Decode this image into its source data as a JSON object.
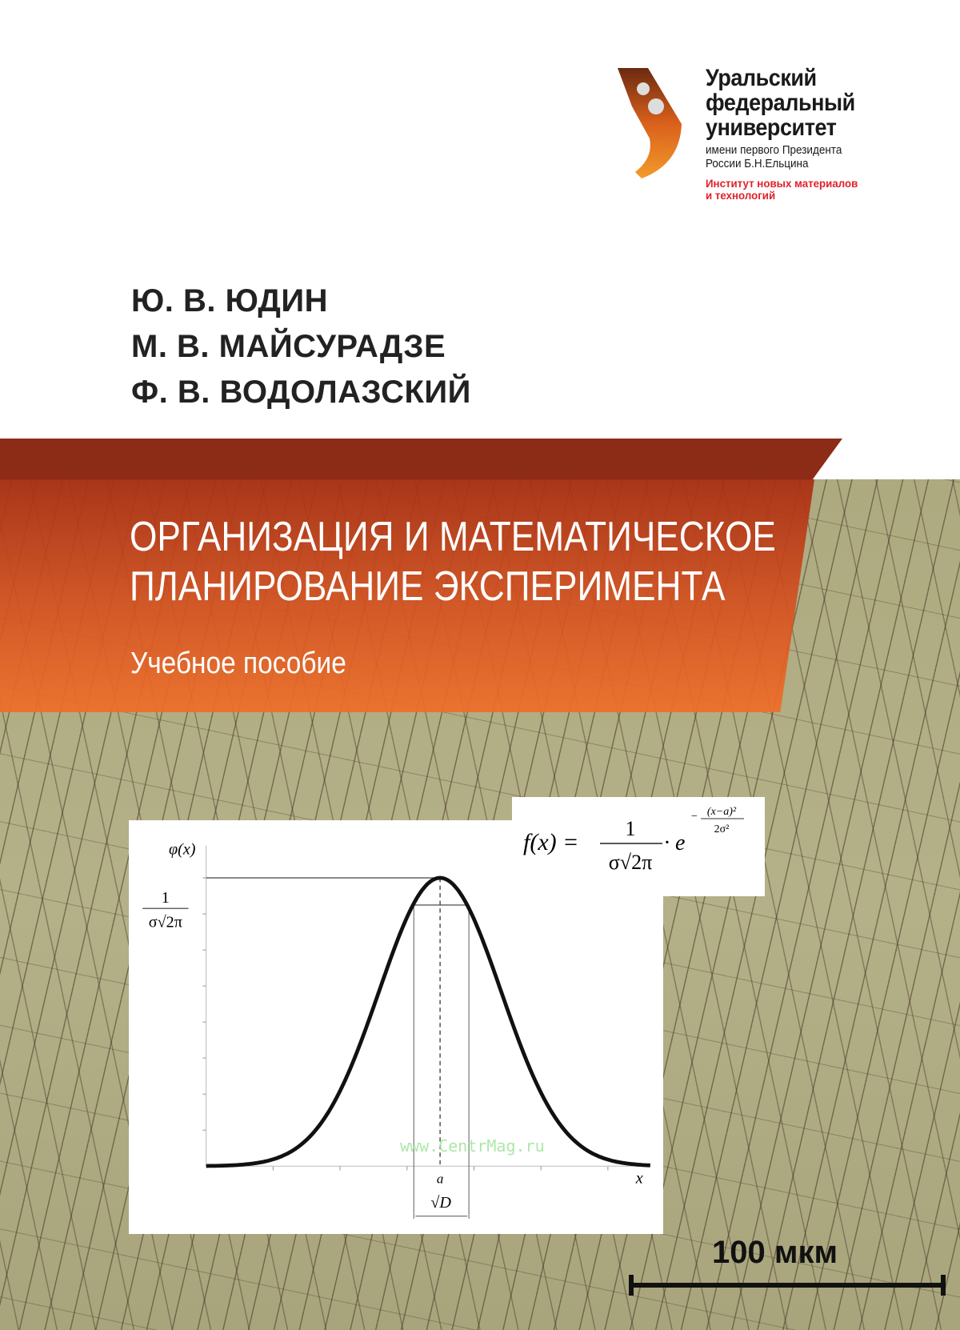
{
  "university": {
    "name_lines": [
      "Уральский",
      "федеральный",
      "университет"
    ],
    "dedication_lines": [
      "имени первого Президента",
      "России Б.Н.Ельцина"
    ],
    "institute_lines": [
      "Институт новых материалов",
      "и технологий"
    ],
    "institute_color": "#e3202a"
  },
  "authors": [
    "Ю. В. ЮДИН",
    "М. В. МАЙСУРАДЗЕ",
    "Ф. В. ВОДОЛАЗСКИЙ"
  ],
  "title_lines": [
    "ОРГАНИЗАЦИЯ И МАТЕМАТИЧЕСКОЕ",
    "ПЛАНИРОВАНИЕ ЭКСПЕРИМЕНТА"
  ],
  "subtitle": "Учебное пособие",
  "colors": {
    "band_dark": "#8c2c17",
    "band_orange": "#e0602a",
    "background_texture": "#aeaa80"
  },
  "formula": {
    "lhs": "f(x) =",
    "numerator": "1",
    "denominator": "σ√2π",
    "dot_e": "· e",
    "exp_num": "(x−a)²",
    "exp_den": "2σ²",
    "exp_sign": "−"
  },
  "chart_data": {
    "type": "line",
    "function": "normal density",
    "ylabel": "φ(x)",
    "xlabel": "x",
    "y_tick_label": {
      "numerator": "1",
      "denominator": "σ√2π"
    },
    "x_tick_label": "a",
    "interval_label": "√D",
    "x_ticks": 7,
    "y_ticks": 8
  },
  "watermark": "www.CentrMag.ru",
  "scale_bar": {
    "label": "100 мкм"
  }
}
